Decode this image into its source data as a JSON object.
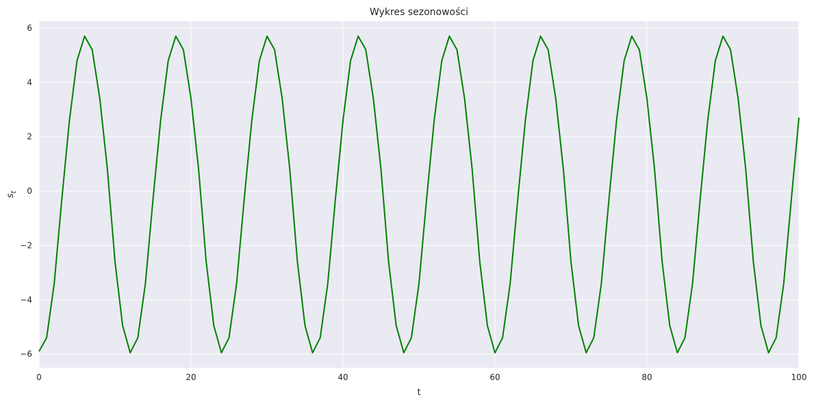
{
  "chart_data": {
    "type": "line",
    "title": "Wykres sezonowości",
    "xlabel": "t",
    "ylabel": "s",
    "ylabel_subscript": "t",
    "xlim": [
      0,
      100
    ],
    "ylim": [
      -6.5,
      6.25
    ],
    "xticks": [
      0,
      20,
      40,
      60,
      80,
      100
    ],
    "xtick_labels": [
      "0",
      "20",
      "40",
      "60",
      "80",
      "100"
    ],
    "yticks": [
      -6,
      -4,
      -2,
      0,
      2,
      4,
      6
    ],
    "ytick_labels": [
      "−6",
      "−4",
      "−2",
      "0",
      "2",
      "4",
      "6"
    ],
    "grid": true,
    "background": "#eaeaf2",
    "grid_color": "#ffffff",
    "series": [
      {
        "color": "#008000",
        "x": [
          0,
          1,
          2,
          3,
          4,
          5,
          6,
          7,
          8,
          9,
          10,
          11,
          12,
          13,
          14,
          15,
          16,
          17,
          18,
          19,
          20,
          21,
          22,
          23,
          24,
          25,
          26,
          27,
          28,
          29,
          30,
          31,
          32,
          33,
          34,
          35,
          36,
          37,
          38,
          39,
          40,
          41,
          42,
          43,
          44,
          45,
          46,
          47,
          48,
          49,
          50,
          51,
          52,
          53,
          54,
          55,
          56,
          57,
          58,
          59,
          60,
          61,
          62,
          63,
          64,
          65,
          66,
          67,
          68,
          69,
          70,
          71,
          72,
          73,
          74,
          75,
          76,
          77,
          78,
          79,
          80,
          81,
          82,
          83,
          84,
          85,
          86,
          87,
          88,
          89,
          90,
          91,
          92,
          93,
          94,
          95,
          96,
          97,
          98,
          99,
          100
        ],
        "y": [
          -5.9,
          -5.4,
          -3.4,
          -0.3,
          2.6,
          4.8,
          5.7,
          5.2,
          3.4,
          0.8,
          -2.6,
          -4.95,
          -5.95,
          -5.4,
          -3.4,
          -0.3,
          2.6,
          4.8,
          5.7,
          5.2,
          3.4,
          0.8,
          -2.6,
          -4.95,
          -5.95,
          -5.4,
          -3.4,
          -0.3,
          2.6,
          4.8,
          5.7,
          5.2,
          3.4,
          0.8,
          -2.6,
          -4.95,
          -5.95,
          -5.4,
          -3.4,
          -0.3,
          2.6,
          4.8,
          5.7,
          5.2,
          3.4,
          0.8,
          -2.6,
          -4.95,
          -5.95,
          -5.4,
          -3.4,
          -0.3,
          2.6,
          4.8,
          5.7,
          5.2,
          3.4,
          0.8,
          -2.6,
          -4.95,
          -5.95,
          -5.4,
          -3.4,
          -0.3,
          2.6,
          4.8,
          5.7,
          5.2,
          3.4,
          0.8,
          -2.6,
          -4.95,
          -5.95,
          -5.4,
          -3.4,
          -0.3,
          2.6,
          4.8,
          5.7,
          5.2,
          3.4,
          0.8,
          -2.6,
          -4.95,
          -5.95,
          -5.4,
          -3.4,
          -0.3,
          2.6,
          4.8,
          5.7,
          5.2,
          3.4,
          0.8,
          -2.6,
          -4.95,
          -5.95,
          -5.4,
          -3.4,
          -0.3,
          2.7
        ]
      }
    ]
  }
}
